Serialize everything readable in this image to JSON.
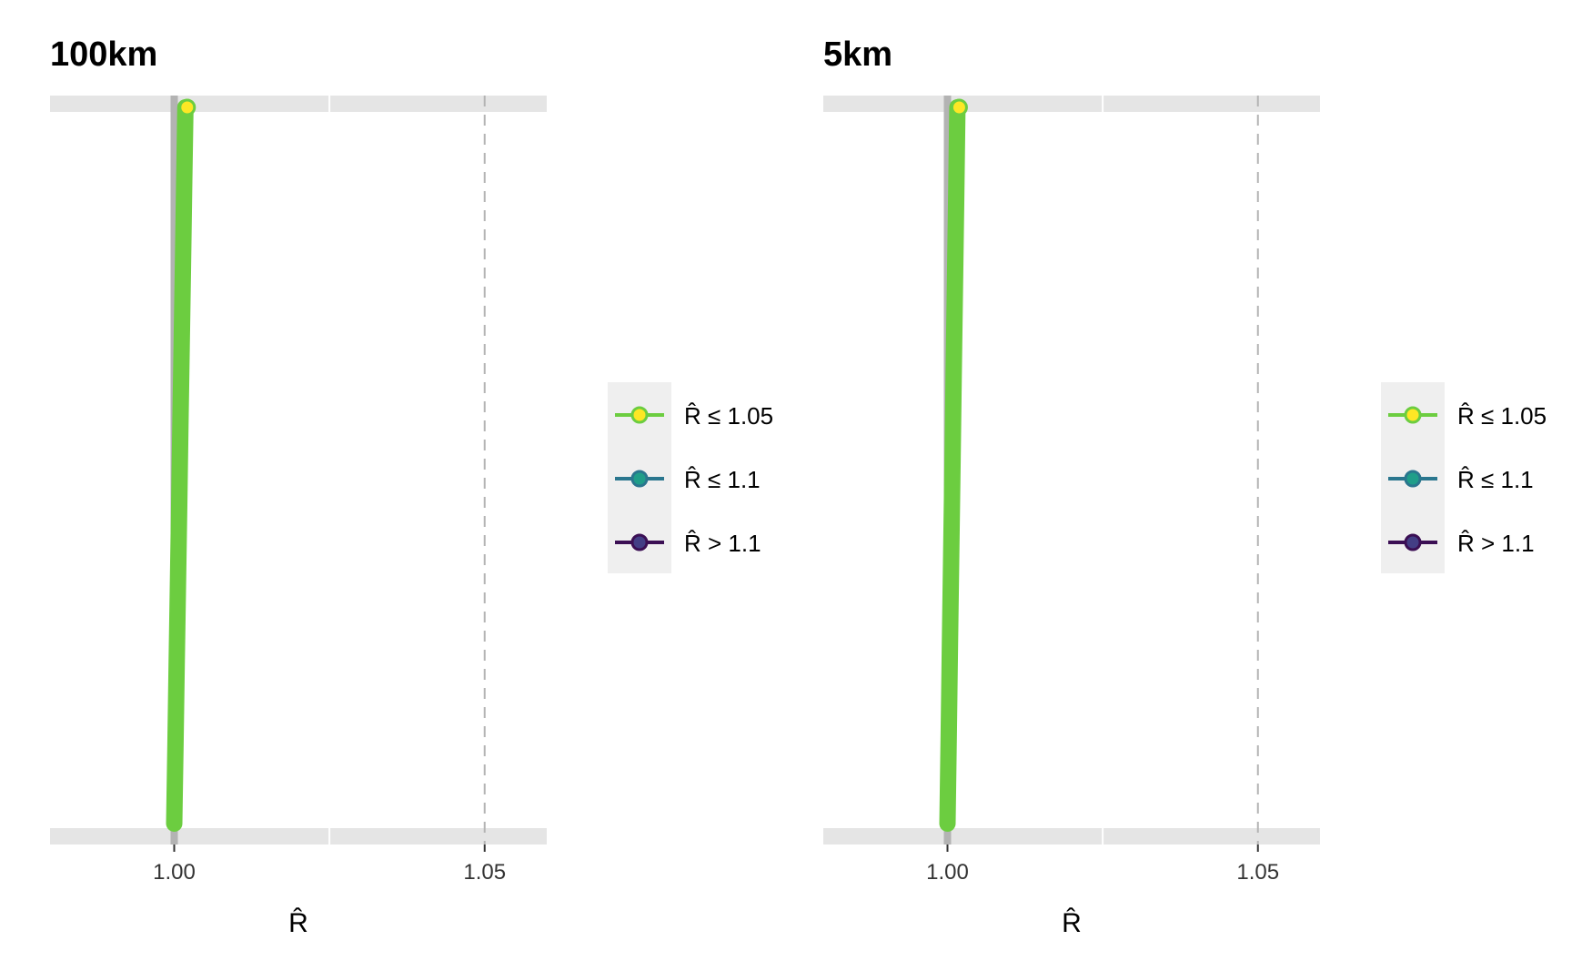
{
  "chart_data": [
    {
      "type": "line",
      "title": "100km",
      "xlabel": "R̂",
      "ylabel": "",
      "xlim": [
        0.98,
        1.06
      ],
      "x_ticks": [
        1.0,
        1.05
      ],
      "x_tick_labels": [
        "1.00",
        "1.05"
      ],
      "reference_lines": [
        {
          "x": 1.0,
          "style": "solid",
          "color": "#b3b3b3"
        },
        {
          "x": 1.05,
          "style": "dashed",
          "color": "#b3b3b3"
        }
      ],
      "series": [
        {
          "values_ordered": [
            1.0,
            1.0002,
            1.0004,
            1.0006,
            1.0008,
            1.001,
            1.0012,
            1.0014,
            1.0016,
            1.0018
          ]
        }
      ],
      "max_point": {
        "x": 1.0018
      },
      "line_color": "#6ccd40",
      "point_fill": "#fde725",
      "legend": {
        "placement": "right",
        "entries": [
          {
            "label": "R̂ ≤ 1.05",
            "line_color": "#6ccd40",
            "fill": "#fde725"
          },
          {
            "label": "R̂ ≤ 1.1",
            "line_color": "#2a768e",
            "fill": "#1f9e89"
          },
          {
            "label": "R̂ > 1.1",
            "line_color": "#3b0f54",
            "fill": "#433e85"
          }
        ]
      }
    },
    {
      "type": "line",
      "title": "5km",
      "xlabel": "R̂",
      "ylabel": "",
      "xlim": [
        0.98,
        1.06
      ],
      "x_ticks": [
        1.0,
        1.05
      ],
      "x_tick_labels": [
        "1.00",
        "1.05"
      ],
      "reference_lines": [
        {
          "x": 1.0,
          "style": "solid",
          "color": "#b3b3b3"
        },
        {
          "x": 1.05,
          "style": "dashed",
          "color": "#b3b3b3"
        }
      ],
      "series": [
        {
          "values_ordered": [
            1.0,
            1.0002,
            1.0004,
            1.0006,
            1.0008,
            1.001,
            1.0012,
            1.0014,
            1.0016
          ]
        }
      ],
      "max_point": {
        "x": 1.0016
      },
      "line_color": "#6ccd40",
      "point_fill": "#fde725",
      "legend": {
        "placement": "right",
        "entries": [
          {
            "label": "R̂ ≤ 1.05",
            "line_color": "#6ccd40",
            "fill": "#fde725"
          },
          {
            "label": "R̂ ≤ 1.1",
            "line_color": "#2a768e",
            "fill": "#1f9e89"
          },
          {
            "label": "R̂ > 1.1",
            "line_color": "#3b0f54",
            "fill": "#433e85"
          }
        ]
      }
    }
  ]
}
